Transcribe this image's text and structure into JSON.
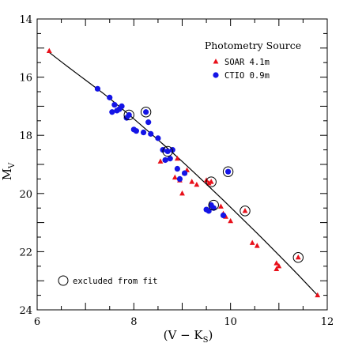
{
  "chart_data": {
    "type": "scatter",
    "title": "",
    "xlabel": "(V − K",
    "xlabel_sub": "S",
    "xlabel_close": ")",
    "ylabel": "M",
    "ylabel_sub": "V",
    "xlim": [
      6,
      12
    ],
    "ylim": [
      24,
      14
    ],
    "y_inverted": true,
    "x_ticks": [
      6,
      8,
      10,
      12
    ],
    "y_ticks": [
      14,
      16,
      18,
      20,
      22,
      24
    ],
    "grid": false,
    "legend": {
      "title": "Photometry Source",
      "placement": "top-right",
      "entries": [
        {
          "label": "SOAR 4.1m",
          "marker": "triangle",
          "color": "#e8101a"
        },
        {
          "label": "CTIO 0.9m",
          "marker": "circle",
          "color": "#1414e6"
        }
      ]
    },
    "annotation": {
      "label": "excluded from fit",
      "marker": "open-circle",
      "placement": "bottom-left"
    },
    "series": [
      {
        "name": "SOAR 4.1m",
        "marker": "triangle",
        "color": "#e8101a",
        "points": [
          [
            6.25,
            15.1
          ],
          [
            8.55,
            18.9
          ],
          [
            8.65,
            18.85
          ],
          [
            8.9,
            18.8
          ],
          [
            8.85,
            19.45
          ],
          [
            8.95,
            19.55
          ],
          [
            9.0,
            20.0
          ],
          [
            9.05,
            19.3
          ],
          [
            9.1,
            19.2
          ],
          [
            9.2,
            19.6
          ],
          [
            9.3,
            19.7
          ],
          [
            9.5,
            19.55
          ],
          [
            9.55,
            19.65
          ],
          [
            9.6,
            19.6
          ],
          [
            9.8,
            20.45
          ],
          [
            9.85,
            20.7
          ],
          [
            9.9,
            20.8
          ],
          [
            10.0,
            20.95
          ],
          [
            10.3,
            20.6
          ],
          [
            10.45,
            21.7
          ],
          [
            10.55,
            21.8
          ],
          [
            10.95,
            22.4
          ],
          [
            10.95,
            22.6
          ],
          [
            11.0,
            22.5
          ],
          [
            11.4,
            22.2
          ],
          [
            11.8,
            23.5
          ]
        ]
      },
      {
        "name": "CTIO 0.9m",
        "marker": "circle",
        "color": "#1414e6",
        "points": [
          [
            7.25,
            16.4
          ],
          [
            7.5,
            16.7
          ],
          [
            7.55,
            17.2
          ],
          [
            7.6,
            16.95
          ],
          [
            7.65,
            17.15
          ],
          [
            7.7,
            17.1
          ],
          [
            7.75,
            17.0
          ],
          [
            7.85,
            17.4
          ],
          [
            7.9,
            17.3
          ],
          [
            8.0,
            17.8
          ],
          [
            8.05,
            17.85
          ],
          [
            8.2,
            17.9
          ],
          [
            8.25,
            17.2
          ],
          [
            8.3,
            17.55
          ],
          [
            8.35,
            17.95
          ],
          [
            8.5,
            18.1
          ],
          [
            8.6,
            18.5
          ],
          [
            8.65,
            18.85
          ],
          [
            8.7,
            18.55
          ],
          [
            8.75,
            18.8
          ],
          [
            8.8,
            18.5
          ],
          [
            8.9,
            19.15
          ],
          [
            8.95,
            19.5
          ],
          [
            9.05,
            19.3
          ],
          [
            9.5,
            20.55
          ],
          [
            9.55,
            20.6
          ],
          [
            9.6,
            20.4
          ],
          [
            9.65,
            20.5
          ],
          [
            9.85,
            20.75
          ],
          [
            9.95,
            19.25
          ]
        ]
      }
    ],
    "excluded_from_fit": [
      [
        7.9,
        17.3
      ],
      [
        8.25,
        17.2
      ],
      [
        8.7,
        18.55
      ],
      [
        9.6,
        19.6
      ],
      [
        9.65,
        20.4
      ],
      [
        9.95,
        19.25
      ],
      [
        10.3,
        20.6
      ],
      [
        11.4,
        22.2
      ]
    ],
    "fit_curve": {
      "x": [
        6.25,
        6.6,
        7.0,
        7.4,
        7.8,
        8.2,
        8.6,
        9.0,
        9.4,
        9.8,
        10.2,
        10.6,
        11.0,
        11.4,
        11.8
      ],
      "y": [
        15.15,
        15.6,
        16.1,
        16.6,
        17.15,
        17.72,
        18.3,
        18.9,
        19.52,
        20.15,
        20.8,
        21.45,
        22.12,
        22.8,
        23.5
      ]
    }
  }
}
